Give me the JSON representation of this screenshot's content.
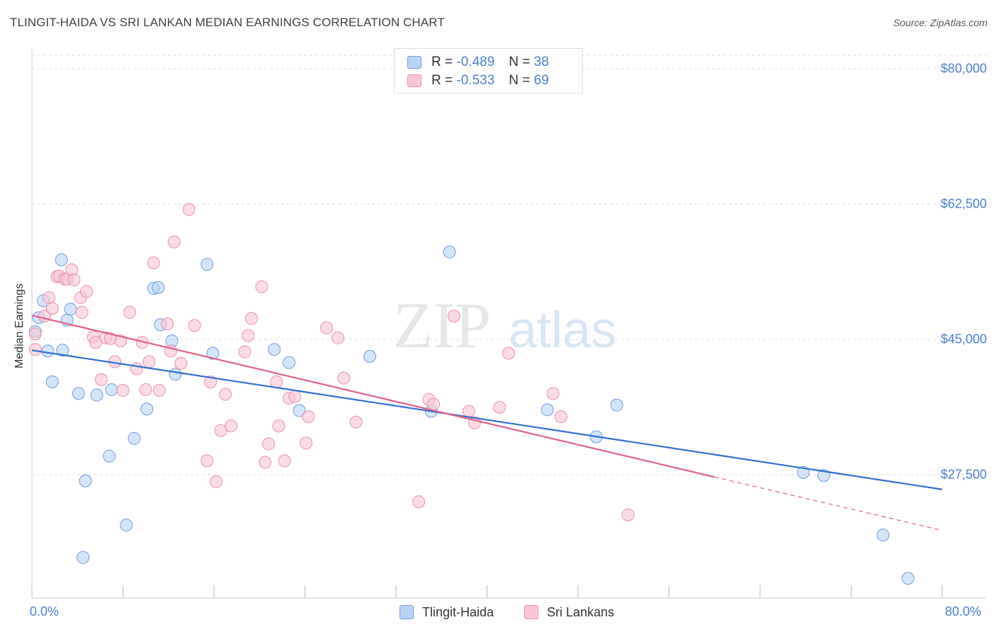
{
  "title": "TLINGIT-HAIDA VS SRI LANKAN MEDIAN EARNINGS CORRELATION CHART",
  "source": "Source: ZipAtlas.com",
  "watermark": {
    "zip": "ZIP",
    "atlas": "atlas"
  },
  "stats": {
    "tlingit": {
      "r_label": "R =",
      "r_value": "-0.489",
      "n_label": "N =",
      "n_value": "38"
    },
    "srilankan": {
      "r_label": "R =",
      "r_value": "-0.533",
      "n_label": "N =",
      "n_value": "69"
    }
  },
  "legend": {
    "tlingit": "Tlingit-Haida",
    "srilankan": "Sri Lankans"
  },
  "colors": {
    "blue_fill": "#b8d3f7",
    "blue_stroke": "#6f9ad9",
    "blue_line": "#2f6fd0",
    "pink_fill": "#f8c5d6",
    "pink_stroke": "#e890ab",
    "pink_line": "#e0608a",
    "tick_text": "#4a7fd4",
    "grid": "#dddddd"
  },
  "chart_data": {
    "type": "scatter",
    "title": "TLINGIT-HAIDA VS SRI LANKAN MEDIAN EARNINGS CORRELATION CHART",
    "xlabel": "",
    "ylabel": "Median Earnings",
    "xlim": [
      0,
      80
    ],
    "ylim": [
      10000,
      83000
    ],
    "x_tick_labels": [
      "0.0%",
      "80.0%"
    ],
    "y_ticks": [
      27500,
      45000,
      62500,
      80000
    ],
    "y_tick_labels": [
      "$27,500",
      "$45,000",
      "$62,500",
      "$80,000"
    ],
    "series": [
      {
        "name": "Tlingit-Haida",
        "points": [
          [
            0.3,
            46000
          ],
          [
            0.6,
            47800
          ],
          [
            1.0,
            50000
          ],
          [
            1.4,
            43500
          ],
          [
            1.8,
            39500
          ],
          [
            2.6,
            55300
          ],
          [
            2.7,
            43600
          ],
          [
            3.1,
            47500
          ],
          [
            3.4,
            48900
          ],
          [
            4.1,
            38000
          ],
          [
            4.5,
            16800
          ],
          [
            4.7,
            26700
          ],
          [
            5.7,
            37800
          ],
          [
            6.8,
            29900
          ],
          [
            7.0,
            38500
          ],
          [
            8.3,
            21000
          ],
          [
            9.0,
            32200
          ],
          [
            10.1,
            36000
          ],
          [
            10.7,
            51600
          ],
          [
            11.1,
            51700
          ],
          [
            11.3,
            46900
          ],
          [
            12.3,
            44800
          ],
          [
            12.6,
            40500
          ],
          [
            15.4,
            54700
          ],
          [
            15.9,
            43200
          ],
          [
            21.3,
            43700
          ],
          [
            22.6,
            42000
          ],
          [
            23.5,
            35800
          ],
          [
            29.7,
            42800
          ],
          [
            35.1,
            35700
          ],
          [
            36.7,
            56300
          ],
          [
            45.3,
            35900
          ],
          [
            49.6,
            32400
          ],
          [
            51.4,
            36500
          ],
          [
            67.8,
            27800
          ],
          [
            69.6,
            27400
          ],
          [
            74.8,
            19700
          ],
          [
            77.0,
            14100
          ]
        ]
      },
      {
        "name": "Sri Lankans",
        "points": [
          [
            0.3,
            45700
          ],
          [
            0.3,
            43700
          ],
          [
            1.1,
            48000
          ],
          [
            1.5,
            50400
          ],
          [
            1.8,
            49000
          ],
          [
            2.2,
            53100
          ],
          [
            2.4,
            53200
          ],
          [
            2.9,
            52800
          ],
          [
            3.1,
            52800
          ],
          [
            3.5,
            54000
          ],
          [
            3.7,
            52700
          ],
          [
            4.3,
            50400
          ],
          [
            4.4,
            48500
          ],
          [
            4.8,
            51200
          ],
          [
            5.4,
            45300
          ],
          [
            5.6,
            44600
          ],
          [
            6.1,
            39800
          ],
          [
            6.5,
            45200
          ],
          [
            6.9,
            45100
          ],
          [
            7.3,
            42100
          ],
          [
            7.8,
            44800
          ],
          [
            8.0,
            38400
          ],
          [
            8.6,
            48500
          ],
          [
            9.2,
            41200
          ],
          [
            9.7,
            44600
          ],
          [
            10.0,
            38500
          ],
          [
            10.3,
            42100
          ],
          [
            10.7,
            54900
          ],
          [
            11.2,
            38400
          ],
          [
            11.9,
            47000
          ],
          [
            12.2,
            43500
          ],
          [
            12.5,
            57600
          ],
          [
            13.1,
            41900
          ],
          [
            13.8,
            61800
          ],
          [
            14.3,
            46800
          ],
          [
            15.4,
            29300
          ],
          [
            15.7,
            39500
          ],
          [
            16.2,
            26600
          ],
          [
            16.6,
            33200
          ],
          [
            17.0,
            37900
          ],
          [
            17.5,
            33800
          ],
          [
            18.7,
            43400
          ],
          [
            19.0,
            45500
          ],
          [
            19.3,
            47700
          ],
          [
            20.2,
            51800
          ],
          [
            20.5,
            29100
          ],
          [
            20.8,
            31500
          ],
          [
            21.5,
            39500
          ],
          [
            21.7,
            33800
          ],
          [
            22.2,
            29300
          ],
          [
            22.6,
            37400
          ],
          [
            23.1,
            37600
          ],
          [
            24.1,
            31600
          ],
          [
            24.3,
            35000
          ],
          [
            25.9,
            46500
          ],
          [
            26.9,
            45200
          ],
          [
            27.4,
            40000
          ],
          [
            28.5,
            34300
          ],
          [
            34.0,
            24000
          ],
          [
            34.9,
            37200
          ],
          [
            35.3,
            36600
          ],
          [
            37.1,
            48000
          ],
          [
            38.4,
            35700
          ],
          [
            38.9,
            34200
          ],
          [
            41.1,
            36200
          ],
          [
            41.9,
            43200
          ],
          [
            45.8,
            38000
          ],
          [
            46.5,
            35000
          ],
          [
            52.4,
            22300
          ]
        ]
      }
    ],
    "trendlines": [
      {
        "name": "Tlingit-Haida",
        "x_start": 0,
        "y_start": 43600,
        "x_end": 80,
        "y_end": 25600
      },
      {
        "name": "Sri Lankans",
        "x_start": 0,
        "y_start": 48100,
        "x_end": 60,
        "y_end": 27200,
        "dashed_to_x": 80,
        "dashed_to_y": 20300
      }
    ]
  }
}
